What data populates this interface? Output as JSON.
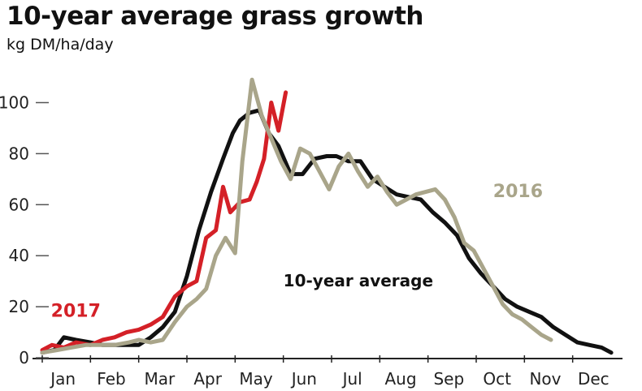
{
  "chart_data": {
    "type": "line",
    "title": "10-year average grass growth",
    "subtitle": "kg DM/ha/day",
    "xlabel": "",
    "ylabel": "",
    "ylim": [
      0,
      110
    ],
    "yticks": [
      0,
      20,
      40,
      60,
      80,
      100
    ],
    "xlim": [
      0,
      12
    ],
    "xtick_labels": [
      "Jan",
      "Feb",
      "Mar",
      "Apr",
      "May",
      "Jun",
      "Jul",
      "Aug",
      "Sep",
      "Oct",
      "Nov",
      "Dec"
    ],
    "grid": false,
    "series": [
      {
        "name": "10-year average",
        "color": "#111111",
        "x": [
          0.0,
          0.25,
          0.45,
          0.7,
          1.0,
          1.25,
          1.5,
          1.75,
          2.0,
          2.25,
          2.5,
          2.75,
          3.0,
          3.25,
          3.5,
          3.75,
          3.95,
          4.1,
          4.3,
          4.5,
          4.7,
          4.9,
          5.15,
          5.4,
          5.65,
          5.9,
          6.1,
          6.35,
          6.6,
          6.85,
          7.1,
          7.35,
          7.6,
          7.85,
          8.1,
          8.35,
          8.6,
          8.85,
          9.1,
          9.35,
          9.6,
          9.85,
          10.1,
          10.35,
          10.6,
          10.85,
          11.1,
          11.35,
          11.6,
          11.8
        ],
        "values": [
          2,
          3,
          8,
          7,
          6,
          5,
          5,
          5,
          5,
          8,
          12,
          18,
          32,
          50,
          65,
          78,
          88,
          93,
          96,
          97,
          88,
          83,
          72,
          72,
          78,
          79,
          79,
          77,
          77,
          70,
          67,
          64,
          63,
          62,
          57,
          53,
          48,
          39,
          33,
          28,
          23,
          20,
          18,
          16,
          12,
          9,
          6,
          5,
          4,
          2
        ]
      },
      {
        "name": "2017",
        "color": "#d42027",
        "x": [
          0.0,
          0.2,
          0.45,
          0.7,
          1.0,
          1.25,
          1.5,
          1.75,
          2.0,
          2.25,
          2.5,
          2.75,
          3.0,
          3.2,
          3.4,
          3.6,
          3.75,
          3.9,
          4.1,
          4.3,
          4.45,
          4.6,
          4.75,
          4.9,
          5.05
        ],
        "values": [
          3,
          5,
          4,
          6,
          5,
          7,
          8,
          10,
          11,
          13,
          16,
          24,
          28,
          30,
          47,
          50,
          67,
          57,
          61,
          62,
          69,
          78,
          100,
          89,
          104
        ]
      },
      {
        "name": "2016",
        "color": "#a9a58a",
        "x": [
          0.0,
          0.3,
          0.6,
          0.9,
          1.2,
          1.5,
          1.8,
          2.0,
          2.25,
          2.5,
          2.75,
          3.0,
          3.2,
          3.4,
          3.6,
          3.8,
          4.0,
          4.15,
          4.35,
          4.55,
          4.75,
          4.95,
          5.15,
          5.35,
          5.55,
          5.75,
          5.95,
          6.15,
          6.35,
          6.55,
          6.75,
          6.95,
          7.15,
          7.35,
          7.55,
          7.75,
          7.95,
          8.15,
          8.35,
          8.55,
          8.75,
          8.95,
          9.15,
          9.35,
          9.55,
          9.75,
          9.95,
          10.15,
          10.35,
          10.55
        ],
        "values": [
          2,
          3,
          4,
          5,
          5,
          5,
          6,
          7,
          6,
          7,
          14,
          20,
          23,
          27,
          40,
          47,
          41,
          77,
          109,
          95,
          86,
          77,
          70,
          82,
          80,
          73,
          66,
          75,
          80,
          73,
          67,
          71,
          65,
          60,
          62,
          64,
          65,
          66,
          62,
          55,
          45,
          42,
          35,
          28,
          21,
          17,
          15,
          12,
          9,
          7
        ]
      }
    ],
    "annotations": [
      {
        "text": "2017",
        "x": 0.18,
        "y": 16,
        "series": "2017"
      },
      {
        "text": "2016",
        "x": 9.35,
        "y": 63,
        "series": "2016"
      },
      {
        "text": "10-year average",
        "x": 5.0,
        "y": 28,
        "series": "10-year average"
      }
    ]
  }
}
